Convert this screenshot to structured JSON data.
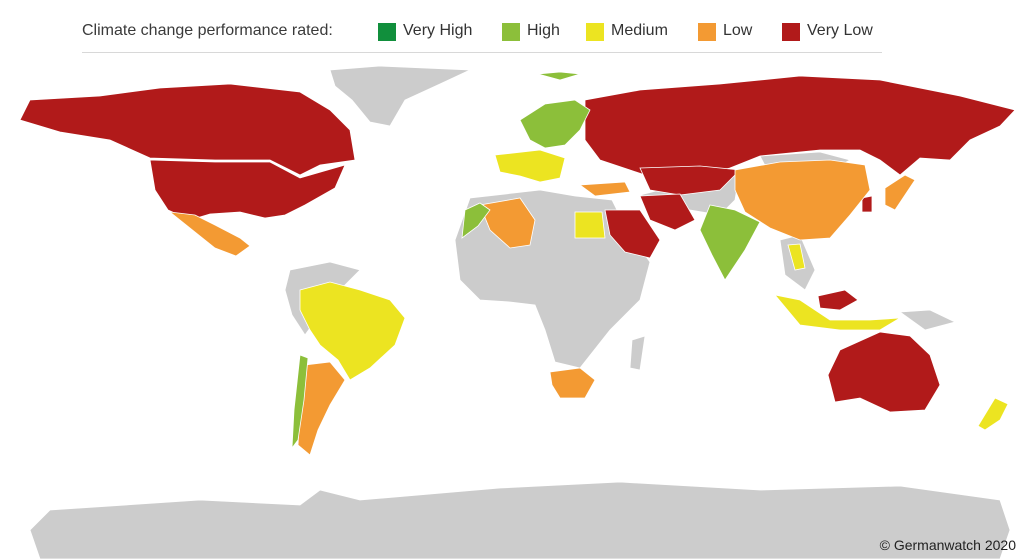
{
  "legend": {
    "title": "Climate change performance rated:",
    "items": [
      {
        "label": "Very High",
        "color": "#118f3c"
      },
      {
        "label": "High",
        "color": "#8cbf3a"
      },
      {
        "label": "Medium",
        "color": "#ece421"
      },
      {
        "label": "Low",
        "color": "#f39a33"
      },
      {
        "label": "Very Low",
        "color": "#b11a1a"
      }
    ]
  },
  "map": {
    "background_land_color": "#cccccc",
    "regions": [
      {
        "name": "Canada",
        "rating": "Very Low"
      },
      {
        "name": "United States",
        "rating": "Very Low"
      },
      {
        "name": "Mexico",
        "rating": "Low"
      },
      {
        "name": "Brazil",
        "rating": "Medium"
      },
      {
        "name": "Argentina",
        "rating": "Low"
      },
      {
        "name": "Chile",
        "rating": "High"
      },
      {
        "name": "Russia",
        "rating": "Very Low"
      },
      {
        "name": "China",
        "rating": "Low"
      },
      {
        "name": "India",
        "rating": "High"
      },
      {
        "name": "Australia",
        "rating": "Very Low"
      },
      {
        "name": "Saudi Arabia",
        "rating": "Very Low"
      },
      {
        "name": "Iran",
        "rating": "Very Low"
      },
      {
        "name": "Kazakhstan",
        "rating": "Very Low"
      },
      {
        "name": "Algeria",
        "rating": "Low"
      },
      {
        "name": "Morocco",
        "rating": "High"
      },
      {
        "name": "Egypt",
        "rating": "Medium"
      },
      {
        "name": "South Africa",
        "rating": "Low"
      },
      {
        "name": "Indonesia",
        "rating": "Medium"
      },
      {
        "name": "Malaysia",
        "rating": "Very Low"
      },
      {
        "name": "Thailand",
        "rating": "Medium"
      },
      {
        "name": "Japan",
        "rating": "Low"
      },
      {
        "name": "South Korea",
        "rating": "Very Low"
      },
      {
        "name": "New Zealand",
        "rating": "Medium"
      },
      {
        "name": "Scandinavia",
        "rating": "High"
      },
      {
        "name": "Western Europe",
        "rating": "Medium"
      },
      {
        "name": "Turkey",
        "rating": "Low"
      }
    ]
  },
  "credit": "© Germanwatch 2020"
}
